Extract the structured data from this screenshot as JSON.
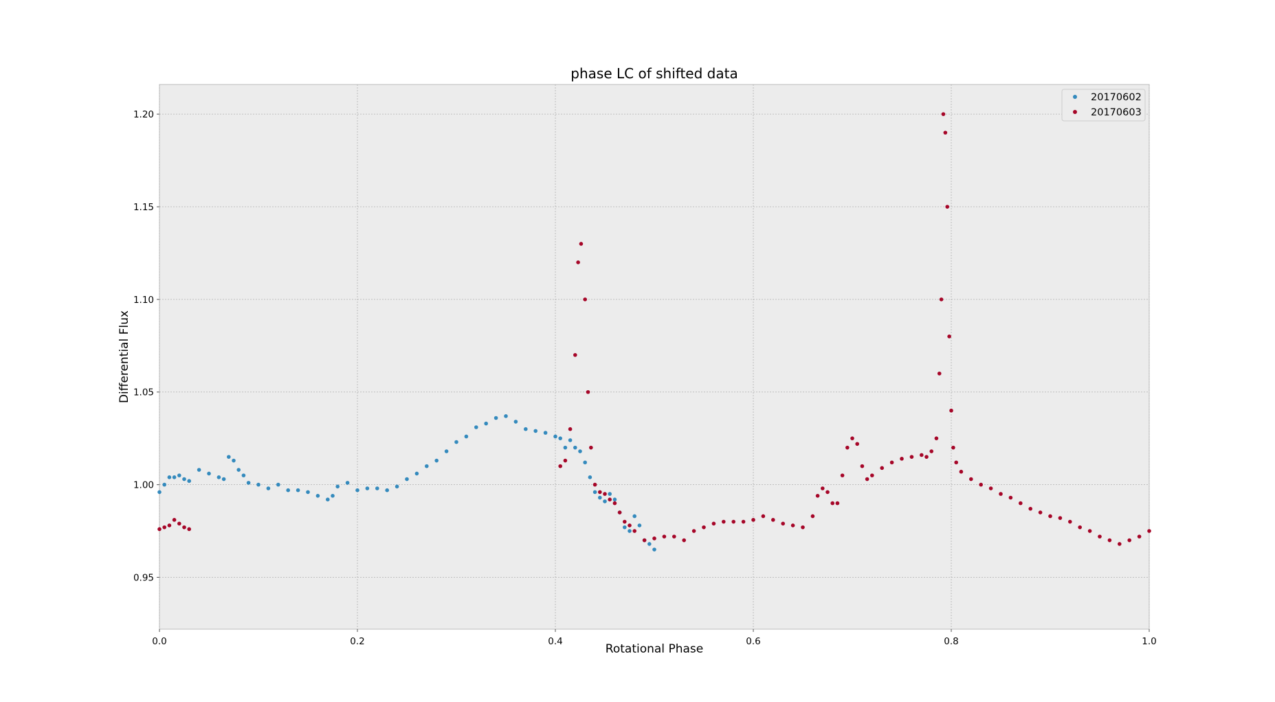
{
  "chart_data": {
    "type": "scatter",
    "title": "phase LC of shifted data",
    "xlabel": "Rotational Phase",
    "ylabel": "Differential Flux",
    "xlim": [
      0.0,
      1.0
    ],
    "ylim": [
      0.922,
      1.216
    ],
    "x_ticks": [
      0.0,
      0.2,
      0.4,
      0.6,
      0.8,
      1.0
    ],
    "x_tick_labels": [
      "0.0",
      "0.2",
      "0.4",
      "0.6",
      "0.8",
      "1.0"
    ],
    "y_ticks": [
      0.95,
      1.0,
      1.05,
      1.1,
      1.15,
      1.2
    ],
    "y_tick_labels": [
      "0.95",
      "1.00",
      "1.05",
      "1.10",
      "1.15",
      "1.20"
    ],
    "grid": true,
    "legend_position": "top-right",
    "background_color": "#ececec",
    "series": [
      {
        "name": "20170602",
        "color": "#348abd",
        "x": [
          0.0,
          0.005,
          0.01,
          0.015,
          0.02,
          0.025,
          0.03,
          0.04,
          0.05,
          0.06,
          0.065,
          0.07,
          0.075,
          0.08,
          0.085,
          0.09,
          0.1,
          0.11,
          0.12,
          0.13,
          0.14,
          0.15,
          0.16,
          0.17,
          0.175,
          0.18,
          0.19,
          0.2,
          0.21,
          0.22,
          0.23,
          0.24,
          0.25,
          0.26,
          0.27,
          0.28,
          0.29,
          0.3,
          0.31,
          0.32,
          0.33,
          0.34,
          0.35,
          0.36,
          0.37,
          0.38,
          0.39,
          0.4,
          0.405,
          0.41,
          0.415,
          0.42,
          0.425,
          0.43,
          0.435,
          0.44,
          0.445,
          0.45,
          0.455,
          0.46,
          0.465,
          0.47,
          0.475,
          0.48,
          0.485,
          0.49,
          0.495,
          0.5
        ],
        "y": [
          0.996,
          1.0,
          1.004,
          1.004,
          1.005,
          1.003,
          1.002,
          1.008,
          1.006,
          1.004,
          1.003,
          1.015,
          1.013,
          1.008,
          1.005,
          1.001,
          1.0,
          0.998,
          1.0,
          0.997,
          0.997,
          0.996,
          0.994,
          0.992,
          0.994,
          0.999,
          1.001,
          0.997,
          0.998,
          0.998,
          0.997,
          0.999,
          1.003,
          1.006,
          1.01,
          1.013,
          1.018,
          1.023,
          1.026,
          1.031,
          1.033,
          1.036,
          1.037,
          1.034,
          1.03,
          1.029,
          1.028,
          1.026,
          1.025,
          1.02,
          1.024,
          1.02,
          1.018,
          1.012,
          1.004,
          0.996,
          0.993,
          0.991,
          0.995,
          0.992,
          0.985,
          0.977,
          0.975,
          0.983,
          0.978,
          0.97,
          0.968,
          0.965
        ]
      },
      {
        "name": "20170603",
        "color": "#a60628",
        "x": [
          0.0,
          0.005,
          0.01,
          0.015,
          0.02,
          0.025,
          0.03,
          0.405,
          0.41,
          0.415,
          0.42,
          0.423,
          0.426,
          0.43,
          0.433,
          0.436,
          0.44,
          0.445,
          0.45,
          0.455,
          0.46,
          0.465,
          0.47,
          0.475,
          0.48,
          0.49,
          0.5,
          0.51,
          0.52,
          0.53,
          0.54,
          0.55,
          0.56,
          0.57,
          0.58,
          0.59,
          0.6,
          0.61,
          0.62,
          0.63,
          0.64,
          0.65,
          0.66,
          0.665,
          0.67,
          0.675,
          0.68,
          0.685,
          0.69,
          0.695,
          0.7,
          0.705,
          0.71,
          0.715,
          0.72,
          0.73,
          0.74,
          0.75,
          0.76,
          0.77,
          0.775,
          0.78,
          0.785,
          0.788,
          0.79,
          0.792,
          0.794,
          0.796,
          0.798,
          0.8,
          0.802,
          0.805,
          0.81,
          0.82,
          0.83,
          0.84,
          0.85,
          0.86,
          0.87,
          0.88,
          0.89,
          0.9,
          0.91,
          0.92,
          0.93,
          0.94,
          0.95,
          0.96,
          0.97,
          0.98,
          0.99,
          1.0
        ],
        "y": [
          0.976,
          0.977,
          0.978,
          0.981,
          0.979,
          0.977,
          0.976,
          1.01,
          1.013,
          1.03,
          1.07,
          1.12,
          1.13,
          1.1,
          1.05,
          1.02,
          1.0,
          0.996,
          0.995,
          0.992,
          0.99,
          0.985,
          0.98,
          0.978,
          0.975,
          0.97,
          0.971,
          0.972,
          0.972,
          0.97,
          0.975,
          0.977,
          0.979,
          0.98,
          0.98,
          0.98,
          0.981,
          0.983,
          0.981,
          0.979,
          0.978,
          0.977,
          0.983,
          0.994,
          0.998,
          0.996,
          0.99,
          0.99,
          1.005,
          1.02,
          1.025,
          1.022,
          1.01,
          1.003,
          1.005,
          1.009,
          1.012,
          1.014,
          1.015,
          1.016,
          1.015,
          1.018,
          1.025,
          1.06,
          1.1,
          1.2,
          1.19,
          1.15,
          1.08,
          1.04,
          1.02,
          1.012,
          1.007,
          1.003,
          1.0,
          0.998,
          0.995,
          0.993,
          0.99,
          0.987,
          0.985,
          0.983,
          0.982,
          0.98,
          0.977,
          0.975,
          0.972,
          0.97,
          0.968,
          0.97,
          0.972,
          0.975
        ]
      }
    ]
  }
}
